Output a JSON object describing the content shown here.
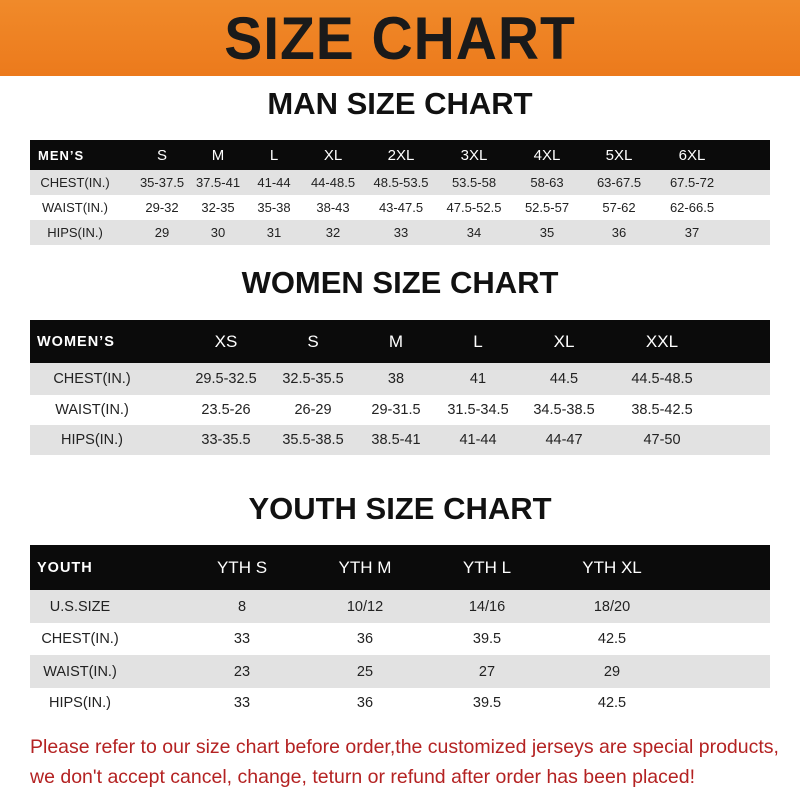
{
  "banner": {
    "title": "SIZE CHART",
    "color": "#ee8022"
  },
  "men": {
    "title": "MAN SIZE CHART",
    "header": [
      "MEN’S",
      "S",
      "M",
      "L",
      "XL",
      "2XL",
      "3XL",
      "4XL",
      "5XL",
      "6XL"
    ],
    "rows": [
      [
        "CHEST(IN.)",
        "35-37.5",
        "37.5-41",
        "41-44",
        "44-48.5",
        "48.5-53.5",
        "53.5-58",
        "58-63",
        "63-67.5",
        "67.5-72"
      ],
      [
        "WAIST(IN.)",
        "29-32",
        "32-35",
        "35-38",
        "38-43",
        "43-47.5",
        "47.5-52.5",
        "52.5-57",
        "57-62",
        "62-66.5"
      ],
      [
        "HIPS(IN.)",
        "29",
        "30",
        "31",
        "32",
        "33",
        "34",
        "35",
        "36",
        "37"
      ]
    ]
  },
  "women": {
    "title": "WOMEN SIZE CHART",
    "header": [
      "WOMEN’S",
      "XS",
      "S",
      "M",
      "L",
      "XL",
      "XXL"
    ],
    "rows": [
      [
        "CHEST(IN.)",
        "29.5-32.5",
        "32.5-35.5",
        "38",
        "41",
        "44.5",
        "44.5-48.5"
      ],
      [
        "WAIST(IN.)",
        "23.5-26",
        "26-29",
        "29-31.5",
        "31.5-34.5",
        "34.5-38.5",
        "38.5-42.5"
      ],
      [
        "HIPS(IN.)",
        "33-35.5",
        "35.5-38.5",
        "38.5-41",
        "41-44",
        "44-47",
        "47-50"
      ]
    ]
  },
  "youth": {
    "title": "YOUTH SIZE CHART",
    "header": [
      "YOUTH",
      "YTH S",
      "YTH M",
      "YTH L",
      "YTH XL"
    ],
    "rows": [
      [
        "U.S.SIZE",
        "8",
        "10/12",
        "14/16",
        "18/20"
      ],
      [
        "CHEST(IN.)",
        "33",
        "36",
        "39.5",
        "42.5"
      ],
      [
        "WAIST(IN.)",
        "23",
        "25",
        "27",
        "29"
      ],
      [
        "HIPS(IN.)",
        "33",
        "36",
        "39.5",
        "42.5"
      ]
    ]
  },
  "notice": {
    "line1": "Please refer to our size chart before order,the customized jerseys are special products,",
    "line2": "we don't accept cancel, change, teturn or refund after order has been placed!",
    "color": "#b42222"
  }
}
